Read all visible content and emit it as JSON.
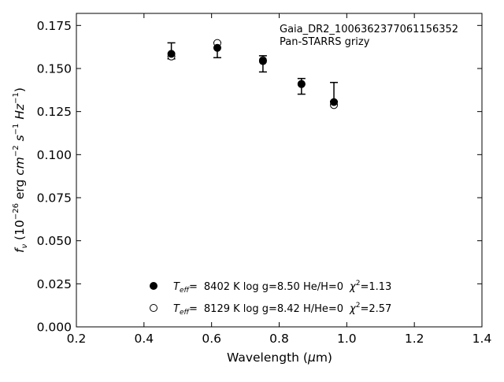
{
  "chart_data": {
    "type": "scatter",
    "title": "",
    "xlabel": "Wavelength (μm)",
    "ylabel": "fν (10⁻²⁶ erg cm⁻² s⁻¹ Hz⁻¹)",
    "xlim": [
      0.2,
      1.4
    ],
    "ylim": [
      0.0,
      0.182
    ],
    "xticks": [
      "0.2",
      "0.4",
      "0.6",
      "0.8",
      "1.0",
      "1.2",
      "1.4"
    ],
    "yticks": [
      "0.000",
      "0.025",
      "0.050",
      "0.075",
      "0.100",
      "0.125",
      "0.150",
      "0.175"
    ],
    "grid": false,
    "legend_position": "bottom-center",
    "annotations": [
      "Gaia_DR2_1006362377061156352",
      "Pan-STARRS grizy"
    ],
    "observed": {
      "x": [
        0.481,
        0.617,
        0.752,
        0.866,
        0.962
      ],
      "y": [
        0.1582,
        0.1605,
        0.1525,
        0.1393,
        0.1364
      ],
      "yerr_low": [
        0.0026,
        0.0042,
        0.0045,
        0.0042,
        0.0055
      ],
      "yerr_high": [
        0.0067,
        0.0047,
        0.0049,
        0.0049,
        0.0055
      ]
    },
    "series": [
      {
        "name": "T_eff= 8402 K log g=8.50 He/H=0 χ²=1.13",
        "marker": "filled-circle",
        "x": [
          0.481,
          0.617,
          0.752,
          0.866,
          0.962
        ],
        "y": [
          0.1585,
          0.162,
          0.1543,
          0.141,
          0.1305
        ]
      },
      {
        "name": "T_eff= 8129 K log g=8.42 H/He=0 χ²=2.57",
        "marker": "open-circle",
        "x": [
          0.481,
          0.617,
          0.752,
          0.866,
          0.962
        ],
        "y": [
          0.157,
          0.1648,
          0.1548,
          0.141,
          0.1288
        ]
      }
    ]
  },
  "legend": {
    "entries": [
      {
        "teff_label": "T",
        "teff_sub": "eff",
        "teff_eq": "=",
        "rest": "8402 K  log g=8.50  He/H=0",
        "chi": "χ",
        "chi_sup": "2",
        "chi_val": "=1.13"
      },
      {
        "teff_label": "T",
        "teff_sub": "eff",
        "teff_eq": "=",
        "rest": "8129 K  log g=8.42  H/He=0",
        "chi": "χ",
        "chi_sup": "2",
        "chi_val": "=2.57"
      }
    ]
  },
  "axes": {
    "xlabel_main": "Wavelength (",
    "xlabel_mu": "μ",
    "xlabel_end": "m)",
    "ylabel_f": "f",
    "ylabel_nu": "ν",
    "ylabel_pre": " (10",
    "ylabel_exp1": "−26",
    "ylabel_mid": " erg ",
    "ylabel_cm": "cm",
    "ylabel_exp2": "−2",
    "ylabel_s": " s",
    "ylabel_exp3": "−1",
    "ylabel_hz": " Hz",
    "ylabel_exp4": "−1",
    "ylabel_close": ")"
  },
  "colors": {
    "marker": "#000000",
    "axis": "#000000",
    "background": "#ffffff"
  }
}
